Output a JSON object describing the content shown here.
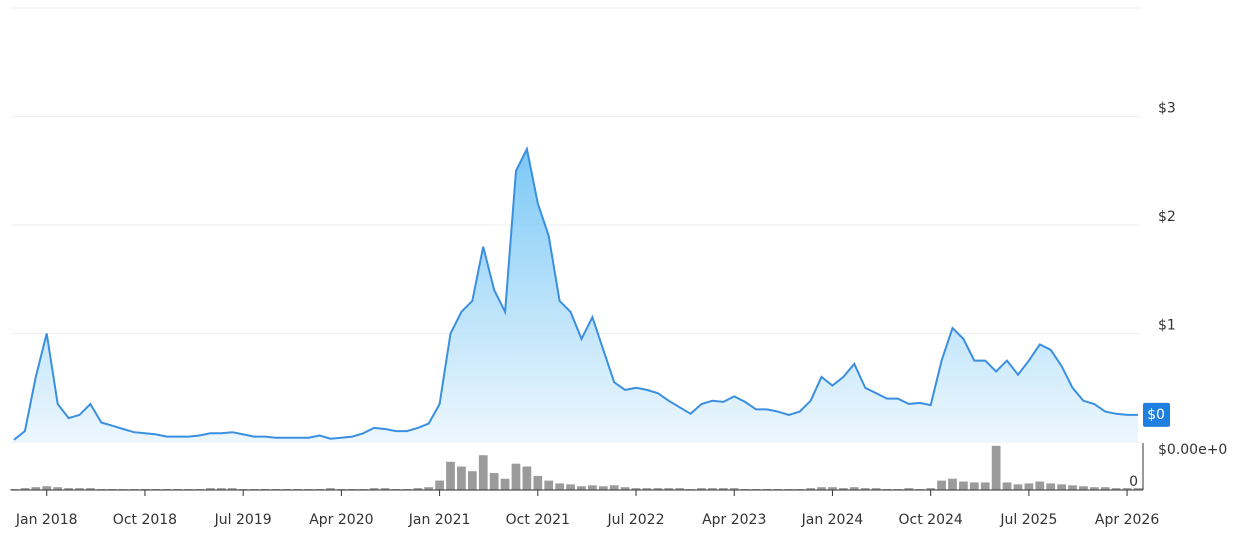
{
  "chart_data": {
    "type": "line",
    "x": [
      "Oct 2017",
      "Nov 2017",
      "Dec 2017",
      "Jan 2018",
      "Feb 2018",
      "Mar 2018",
      "Apr 2018",
      "May 2018",
      "Jun 2018",
      "Jul 2018",
      "Aug 2018",
      "Sep 2018",
      "Oct 2018",
      "Nov 2018",
      "Dec 2018",
      "Jan 2019",
      "Feb 2019",
      "Mar 2019",
      "Apr 2019",
      "May 2019",
      "Jun 2019",
      "Jul 2019",
      "Aug 2019",
      "Sep 2019",
      "Oct 2019",
      "Nov 2019",
      "Dec 2019",
      "Jan 2020",
      "Feb 2020",
      "Mar 2020",
      "Apr 2020",
      "May 2020",
      "Jun 2020",
      "Jul 2020",
      "Aug 2020",
      "Sep 2020",
      "Oct 2020",
      "Nov 2020",
      "Dec 2020",
      "Jan 2021",
      "Feb 2021",
      "Mar 2021",
      "Apr 2021",
      "May 2021",
      "Jun 2021",
      "Jul 2021",
      "Aug 2021",
      "Sep 2021",
      "Oct 2021",
      "Nov 2021",
      "Dec 2021",
      "Jan 2022",
      "Feb 2022",
      "Mar 2022",
      "Apr 2022",
      "May 2022",
      "Jun 2022",
      "Jul 2022",
      "Aug 2022",
      "Sep 2022",
      "Oct 2022",
      "Nov 2022",
      "Dec 2022",
      "Jan 2023",
      "Feb 2023",
      "Mar 2023",
      "Apr 2023",
      "May 2023",
      "Jun 2023",
      "Jul 2023",
      "Aug 2023",
      "Sep 2023",
      "Oct 2023",
      "Nov 2023",
      "Dec 2023",
      "Jan 2024",
      "Feb 2024",
      "Mar 2024",
      "Apr 2024",
      "May 2024",
      "Jun 2024",
      "Jul 2024",
      "Aug 2024",
      "Sep 2024",
      "Oct 2024",
      "Nov 2024",
      "Dec 2024",
      "Jan 2025",
      "Feb 2025",
      "Mar 2025",
      "Apr 2025",
      "May 2025",
      "Jun 2025",
      "Jul 2025",
      "Aug 2025",
      "Sep 2025",
      "Oct 2025",
      "Nov 2025",
      "Dec 2025",
      "Jan 2026",
      "Feb 2026",
      "Mar 2026",
      "Apr 2026",
      "May 2026"
    ],
    "values": [
      0.02,
      0.1,
      0.6,
      1.0,
      0.35,
      0.22,
      0.25,
      0.35,
      0.18,
      0.15,
      0.12,
      0.09,
      0.08,
      0.07,
      0.05,
      0.05,
      0.05,
      0.06,
      0.08,
      0.08,
      0.09,
      0.07,
      0.05,
      0.05,
      0.04,
      0.04,
      0.04,
      0.04,
      0.06,
      0.03,
      0.04,
      0.05,
      0.08,
      0.13,
      0.12,
      0.1,
      0.1,
      0.13,
      0.17,
      0.35,
      1.0,
      1.2,
      1.3,
      1.8,
      1.4,
      1.2,
      2.5,
      2.7,
      2.2,
      1.9,
      1.3,
      1.2,
      0.95,
      1.15,
      0.85,
      0.55,
      0.48,
      0.5,
      0.48,
      0.45,
      0.38,
      0.32,
      0.26,
      0.35,
      0.38,
      0.37,
      0.42,
      0.37,
      0.3,
      0.3,
      0.28,
      0.25,
      0.28,
      0.38,
      0.6,
      0.52,
      0.6,
      0.72,
      0.5,
      0.45,
      0.4,
      0.4,
      0.35,
      0.36,
      0.34,
      0.75,
      1.05,
      0.95,
      0.75,
      0.75,
      0.65,
      0.75,
      0.62,
      0.75,
      0.9,
      0.85,
      0.7,
      0.5,
      0.38,
      0.35,
      0.28,
      0.26,
      0.25,
      0.25
    ],
    "color": "#3b8fe0",
    "area": true,
    "ylim": [
      0,
      4
    ],
    "yticks": [
      {
        "value": 0,
        "label": "$0.00e+0"
      },
      {
        "value": 1,
        "label": "$1"
      },
      {
        "value": 2,
        "label": "$2"
      },
      {
        "value": 3,
        "label": "$3"
      }
    ],
    "grid": true,
    "xticks": [
      "Jan 2018",
      "Oct 2018",
      "Jul 2019",
      "Apr 2020",
      "Jan 2021",
      "Oct 2021",
      "Jul 2022",
      "Apr 2023",
      "Jan 2024",
      "Oct 2024",
      "Jul 2025",
      "Apr 2026"
    ],
    "current_price_label": "$0",
    "volume": {
      "type": "bar",
      "color": "#7a7a7a",
      "values": [
        1,
        2,
        3,
        4,
        3,
        2,
        2,
        2,
        1,
        1,
        1,
        1,
        1,
        1,
        1,
        1,
        1,
        1,
        2,
        2,
        2,
        1,
        1,
        1,
        1,
        1,
        1,
        1,
        1,
        2,
        1,
        1,
        1,
        2,
        2,
        1,
        1,
        2,
        3,
        10,
        30,
        25,
        20,
        37,
        18,
        12,
        28,
        25,
        15,
        10,
        7,
        6,
        4,
        5,
        4,
        5,
        3,
        2,
        2,
        2,
        2,
        2,
        1,
        2,
        2,
        2,
        2,
        1,
        1,
        1,
        1,
        1,
        1,
        2,
        3,
        3,
        2,
        3,
        2,
        2,
        1,
        1,
        2,
        1,
        2,
        10,
        12,
        9,
        8,
        8,
        47,
        8,
        6,
        7,
        9,
        7,
        6,
        5,
        4,
        3,
        3,
        2,
        2,
        2
      ],
      "ylim": [
        0,
        50
      ],
      "yticks": [
        0
      ]
    }
  }
}
